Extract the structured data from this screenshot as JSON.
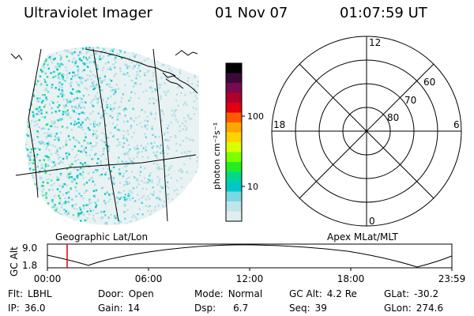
{
  "header": {
    "instrument": "Ultraviolet Imager",
    "date": "01 Nov 07",
    "time": "01:07:59 UT"
  },
  "colorbar": {
    "unit_label": "photon cm⁻²s⁻¹",
    "ticks": [
      "100",
      "10"
    ],
    "colors": [
      "#000000",
      "#3a0a3a",
      "#7a0a50",
      "#b0002a",
      "#e00010",
      "#ff5a00",
      "#ffa500",
      "#ffd200",
      "#d8ff00",
      "#7cff00",
      "#22ee22",
      "#00d890",
      "#00c8c8",
      "#7cd8e0",
      "#c0e4ea",
      "#e0eef0"
    ]
  },
  "polar": {
    "mlt_labels": {
      "top": "12",
      "left": "18",
      "right": "6",
      "bottom": "0"
    },
    "lat_labels": [
      "60",
      "70",
      "80"
    ]
  },
  "altitude_strip": {
    "left_title": "Geographic Lat/Lon",
    "right_title": "Apex MLat/MLT",
    "axis_label": "GC Alt",
    "y_ticks": [
      "9.0",
      "1.8"
    ],
    "x_ticks": [
      "00:00",
      "06:00",
      "12:00",
      "18:00",
      "23:59"
    ],
    "marker_color": "#dd0000"
  },
  "status": {
    "flt": {
      "label": "Flt:",
      "value": "LBHL"
    },
    "door": {
      "label": "Door:",
      "value": "Open"
    },
    "mode": {
      "label": "Mode:",
      "value": "Normal"
    },
    "gcalt": {
      "label": "GC Alt:",
      "value": "4.2 Re"
    },
    "glat": {
      "label": "GLat:",
      "value": "-30.2"
    },
    "ip": {
      "label": "IP:",
      "value": "36.0"
    },
    "gain": {
      "label": "Gain:",
      "value": "14"
    },
    "dsp": {
      "label": "Dsp:",
      "value": "6.7"
    },
    "seq": {
      "label": "Seq:",
      "value": "39"
    },
    "glon": {
      "label": "GLon:",
      "value": "274.6"
    }
  }
}
